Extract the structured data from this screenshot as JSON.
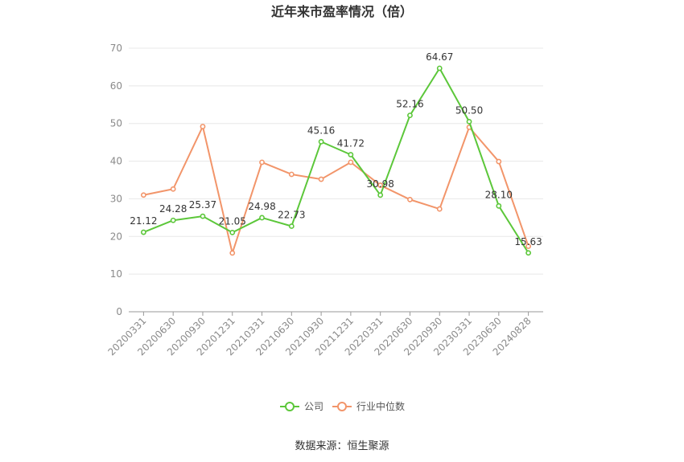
{
  "chart_data": {
    "type": "line",
    "title": "近年来市盈率情况（倍）",
    "categories": [
      "20200331",
      "20200630",
      "20200930",
      "20201231",
      "20210331",
      "20210630",
      "20210930",
      "20211231",
      "20220331",
      "20220630",
      "20220930",
      "20230331",
      "20230630",
      "20240828"
    ],
    "series": [
      {
        "name": "公司",
        "color": "#5cc73a",
        "values": [
          21.12,
          24.28,
          25.37,
          21.05,
          24.98,
          22.73,
          45.16,
          41.72,
          30.98,
          52.16,
          64.67,
          50.5,
          28.1,
          15.63
        ],
        "labels": [
          "21.12",
          "24.28",
          "25.37",
          "21.05",
          "24.98",
          "22.73",
          "45.16",
          "41.72",
          "30.98",
          "52.16",
          "64.67",
          "50.50",
          "28.10",
          "15.63"
        ]
      },
      {
        "name": "行业中位数",
        "color": "#f2956a",
        "values": [
          31.0,
          32.6,
          49.2,
          15.6,
          39.7,
          36.5,
          35.2,
          39.7,
          33.6,
          29.8,
          27.3,
          49.0,
          39.9,
          17.4
        ]
      }
    ],
    "ylim": [
      0,
      70
    ],
    "yticks": [
      0,
      10,
      20,
      30,
      40,
      50,
      60,
      70
    ],
    "grid": true,
    "legend_position": "bottom"
  },
  "source_text": "数据来源：恒生聚源"
}
